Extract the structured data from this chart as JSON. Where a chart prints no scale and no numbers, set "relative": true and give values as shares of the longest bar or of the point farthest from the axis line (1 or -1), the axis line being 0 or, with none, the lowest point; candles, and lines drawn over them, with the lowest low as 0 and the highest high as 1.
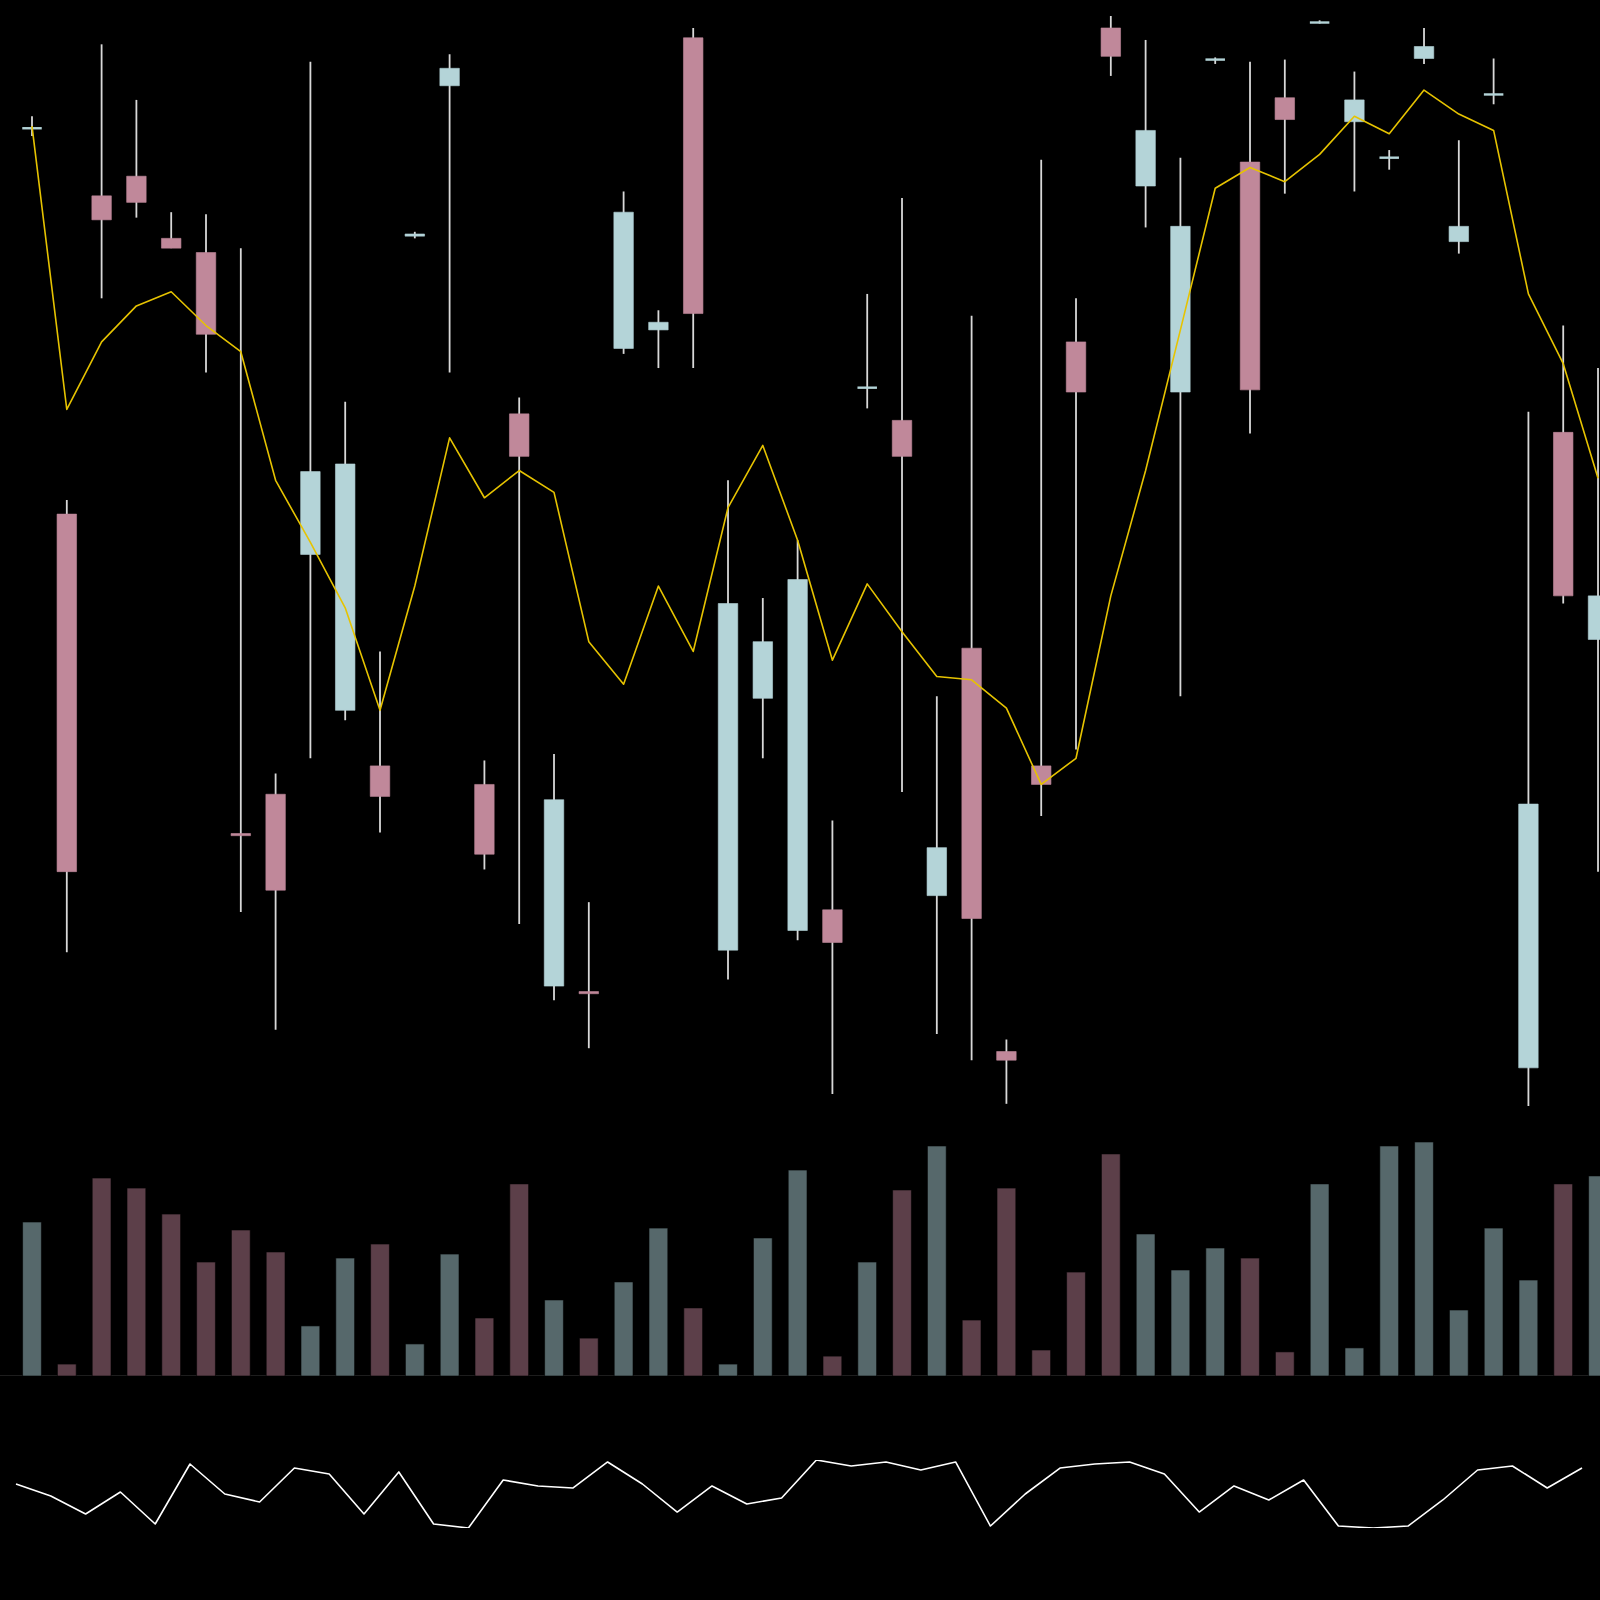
{
  "chart_data": [
    {
      "type": "candlestick",
      "relative": true,
      "categories": [
        null,
        null,
        null,
        null,
        null,
        null,
        null,
        null,
        null,
        null,
        null,
        null,
        null,
        null,
        null,
        null,
        null,
        null,
        null,
        null,
        null,
        null,
        null,
        null,
        null,
        null,
        null,
        null,
        null,
        null,
        null,
        null,
        null,
        null,
        null,
        null,
        null,
        null,
        null,
        null,
        null,
        null,
        null,
        null,
        null,
        null
      ],
      "ohlc": [
        [
          0.897,
          0.908,
          0.89,
          0.897
        ],
        [
          0.543,
          0.556,
          0.141,
          0.215
        ],
        [
          0.835,
          0.974,
          0.741,
          0.813
        ],
        [
          0.853,
          0.923,
          0.815,
          0.829
        ],
        [
          0.796,
          0.82,
          0.787,
          0.787
        ],
        [
          0.783,
          0.818,
          0.673,
          0.708
        ],
        [
          0.25,
          0.787,
          0.178,
          0.248
        ],
        [
          0.286,
          0.305,
          0.07,
          0.198
        ],
        [
          0.506,
          0.958,
          0.319,
          0.582
        ],
        [
          0.363,
          0.646,
          0.354,
          0.589
        ],
        [
          0.312,
          0.417,
          0.251,
          0.284
        ],
        [
          0.798,
          0.802,
          0.796,
          0.8
        ],
        [
          0.936,
          0.965,
          0.673,
          0.952
        ],
        [
          0.295,
          0.317,
          0.217,
          0.231
        ],
        [
          0.635,
          0.65,
          0.167,
          0.596
        ],
        [
          0.11,
          0.323,
          0.097,
          0.281
        ],
        [
          0.105,
          0.187,
          0.053,
          0.103
        ],
        [
          0.695,
          0.839,
          0.69,
          0.82
        ],
        [
          0.712,
          0.73,
          0.677,
          0.719
        ],
        [
          0.98,
          0.989,
          0.677,
          0.727
        ],
        [
          0.143,
          0.574,
          0.116,
          0.461
        ],
        [
          0.374,
          0.466,
          0.319,
          0.426
        ],
        [
          0.161,
          0.519,
          0.152,
          0.483
        ],
        [
          0.18,
          0.262,
          0.011,
          0.15
        ],
        [
          0.659,
          0.745,
          0.64,
          0.659
        ],
        [
          0.629,
          0.833,
          0.288,
          0.596
        ],
        [
          0.193,
          0.376,
          0.066,
          0.237
        ],
        [
          0.42,
          0.725,
          0.042,
          0.172
        ],
        [
          0.05,
          0.061,
          0.002,
          0.042
        ],
        [
          0.312,
          0.868,
          0.266,
          0.295
        ],
        [
          0.701,
          0.741,
          0.327,
          0.655
        ],
        [
          0.989,
          1.0,
          0.945,
          0.963
        ],
        [
          0.844,
          0.978,
          0.806,
          0.895
        ],
        [
          0.655,
          0.87,
          0.376,
          0.807
        ],
        [
          0.96,
          0.962,
          0.956,
          0.96
        ],
        [
          0.866,
          0.958,
          0.617,
          0.657
        ],
        [
          0.925,
          0.96,
          0.837,
          0.905
        ],
        [
          0.994,
          0.996,
          0.993,
          0.994
        ],
        [
          0.903,
          0.949,
          0.839,
          0.923
        ],
        [
          0.87,
          0.877,
          0.859,
          0.87
        ],
        [
          0.961,
          0.989,
          0.956,
          0.972
        ],
        [
          0.793,
          0.886,
          0.782,
          0.807
        ],
        [
          0.928,
          0.961,
          0.919,
          0.928
        ],
        [
          0.035,
          0.637,
          0.0,
          0.277
        ],
        [
          0.618,
          0.716,
          0.461,
          0.468
        ],
        [
          0.428,
          0.677,
          0.215,
          0.468
        ]
      ],
      "colors": [
        "#b4d4d8",
        "#c0889a",
        "#c0889a",
        "#c0889a",
        "#c0889a",
        "#c0889a",
        "#c0889a",
        "#c0889a",
        "#b4d4d8",
        "#b4d4d8",
        "#c0889a",
        "#b4d4d8",
        "#b4d4d8",
        "#c0889a",
        "#c0889a",
        "#b4d4d8",
        "#c0889a",
        "#b4d4d8",
        "#b4d4d8",
        "#c0889a",
        "#b4d4d8",
        "#b4d4d8",
        "#b4d4d8",
        "#c0889a",
        "#b4d4d8",
        "#c0889a",
        "#b4d4d8",
        "#c0889a",
        "#c0889a",
        "#c0889a",
        "#c0889a",
        "#c0889a",
        "#b4d4d8",
        "#b4d4d8",
        "#b4d4d8",
        "#c0889a",
        "#c0889a",
        "#b4d4d8",
        "#b4d4d8",
        "#b4d4d8",
        "#b4d4d8",
        "#b4d4d8",
        "#b4d4d8",
        "#b4d4d8",
        "#c0889a",
        "#b4d4d8"
      ],
      "series": [
        {
          "type": "line",
          "color": "#e6c300",
          "values": [
            0.899,
            0.639,
            0.701,
            0.734,
            0.747,
            0.716,
            0.692,
            0.574,
            0.517,
            0.457,
            0.363,
            0.477,
            0.613,
            0.558,
            0.583,
            0.563,
            0.426,
            0.387,
            0.477,
            0.417,
            0.549,
            0.606,
            0.519,
            0.409,
            0.479,
            0.435,
            0.394,
            0.391,
            0.365,
            0.295,
            0.319,
            0.468,
            0.583,
            0.712,
            0.842,
            0.861,
            0.848,
            0.873,
            0.908,
            0.892,
            0.932,
            0.91,
            0.895,
            0.745,
            0.681,
            0.576
          ]
        }
      ]
    },
    {
      "type": "bar",
      "relative": true,
      "categories": [
        null,
        null,
        null,
        null,
        null,
        null,
        null,
        null,
        null,
        null,
        null,
        null,
        null,
        null,
        null,
        null,
        null,
        null,
        null,
        null,
        null,
        null,
        null,
        null,
        null,
        null,
        null,
        null,
        null,
        null,
        null,
        null,
        null,
        null,
        null,
        null,
        null,
        null,
        null,
        null,
        null,
        null,
        null,
        null,
        null,
        null
      ],
      "values": [
        0.658,
        0.051,
        0.846,
        0.803,
        0.692,
        0.487,
        0.624,
        0.53,
        0.214,
        0.504,
        0.564,
        0.137,
        0.521,
        0.248,
        0.821,
        0.325,
        0.162,
        0.402,
        0.632,
        0.291,
        0.051,
        0.59,
        0.88,
        0.085,
        0.487,
        0.795,
        0.983,
        0.239,
        0.803,
        0.111,
        0.444,
        0.949,
        0.607,
        0.453,
        0.547,
        0.504,
        0.103,
        0.821,
        0.12,
        0.983,
        1.0,
        0.282,
        0.632,
        0.41,
        0.821,
        0.855
      ],
      "colors": [
        "#56686b",
        "#5c3f49",
        "#5c3f49",
        "#5c3f49",
        "#5c3f49",
        "#5c3f49",
        "#5c3f49",
        "#5c3f49",
        "#56686b",
        "#56686b",
        "#5c3f49",
        "#56686b",
        "#56686b",
        "#5c3f49",
        "#5c3f49",
        "#56686b",
        "#5c3f49",
        "#56686b",
        "#56686b",
        "#5c3f49",
        "#56686b",
        "#56686b",
        "#56686b",
        "#5c3f49",
        "#56686b",
        "#5c3f49",
        "#56686b",
        "#5c3f49",
        "#5c3f49",
        "#5c3f49",
        "#5c3f49",
        "#5c3f49",
        "#56686b",
        "#56686b",
        "#56686b",
        "#5c3f49",
        "#5c3f49",
        "#56686b",
        "#56686b",
        "#56686b",
        "#56686b",
        "#56686b",
        "#56686b",
        "#56686b",
        "#5c3f49",
        "#56686b"
      ]
    },
    {
      "type": "line",
      "relative": true,
      "color": "#ffffff",
      "categories": [
        null,
        null,
        null,
        null,
        null,
        null,
        null,
        null,
        null,
        null,
        null,
        null,
        null,
        null,
        null,
        null,
        null,
        null,
        null,
        null,
        null,
        null,
        null,
        null,
        null,
        null,
        null,
        null,
        null,
        null,
        null,
        null,
        null,
        null,
        null,
        null,
        null,
        null,
        null,
        null,
        null,
        null,
        null,
        null,
        null,
        null
      ],
      "values": [
        0.647,
        0.471,
        0.206,
        0.529,
        0.059,
        0.941,
        0.5,
        0.382,
        0.882,
        0.794,
        0.206,
        0.824,
        0.059,
        0,
        0.706,
        0.618,
        0.588,
        0.971,
        0.647,
        0.235,
        0.618,
        0.353,
        0.441,
        1,
        0.912,
        0.971,
        0.853,
        0.971,
        0.029,
        0.5,
        0.882,
        0.941,
        0.971,
        0.794,
        0.235,
        0.618,
        0.412,
        0.706,
        0.029,
        0,
        0.029,
        0.412,
        0.853,
        0.912,
        0.588,
        0.882
      ]
    }
  ]
}
